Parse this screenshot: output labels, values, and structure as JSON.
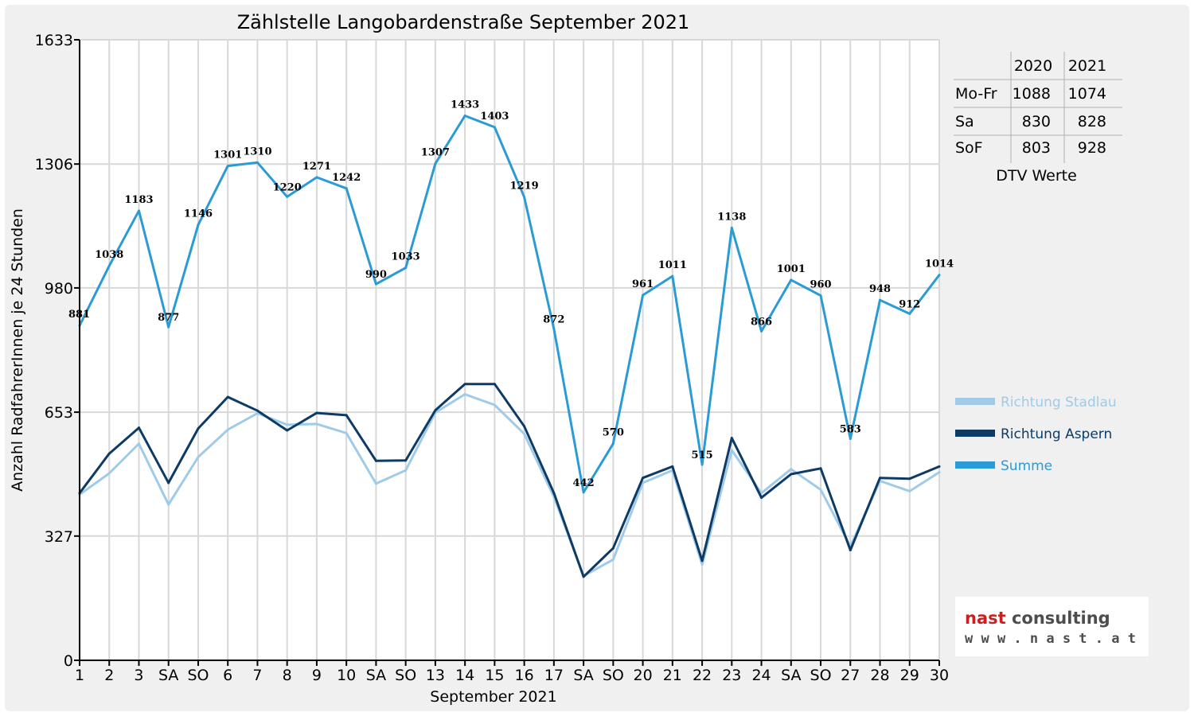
{
  "chart_data": {
    "type": "line",
    "title": "Zählstelle Langobardenstraße September 2021",
    "xlabel": "September 2021",
    "ylabel": "Anzahl RadfahrerInnen je 24 Stunden",
    "ylim": [
      0,
      1633
    ],
    "yticks": [
      "0",
      "327",
      "653",
      "980",
      "1306",
      "1633"
    ],
    "categories": [
      "1",
      "2",
      "3",
      "SA",
      "SO",
      "6",
      "7",
      "8",
      "9",
      "10",
      "SA",
      "SO",
      "13",
      "14",
      "15",
      "16",
      "17",
      "SA",
      "SO",
      "20",
      "21",
      "22",
      "23",
      "24",
      "SA",
      "SO",
      "27",
      "28",
      "29",
      "30"
    ],
    "highlight_categories": [
      "SO"
    ],
    "highlight_color": "#e00000",
    "grid": true,
    "legend_position": "right",
    "series": [
      {
        "name": "Richtung Stadlau",
        "color": "#9fcbe8",
        "values": [
          436,
          492,
          570,
          410,
          535,
          607,
          650,
          620,
          622,
          598,
          465,
          500,
          652,
          700,
          672,
          596,
          430,
          222,
          265,
          467,
          500,
          252,
          553,
          440,
          503,
          449,
          300,
          472,
          445,
          495
        ]
      },
      {
        "name": "Richtung Aspern",
        "color": "#0d3b66",
        "values": [
          440,
          544,
          612,
          467,
          610,
          693,
          657,
          605,
          651,
          645,
          525,
          526,
          658,
          727,
          727,
          616,
          440,
          220,
          295,
          480,
          510,
          262,
          585,
          428,
          490,
          505,
          290,
          480,
          478,
          510
        ]
      },
      {
        "name": "Summe",
        "color": "#2b9bd6",
        "values": [
          881,
          1038,
          1183,
          877,
          1146,
          1301,
          1310,
          1220,
          1271,
          1242,
          990,
          1033,
          1307,
          1433,
          1403,
          1219,
          872,
          442,
          570,
          961,
          1011,
          515,
          1138,
          866,
          1001,
          960,
          583,
          948,
          912,
          1014
        ]
      }
    ],
    "data_labels": [
      "881",
      "1038",
      "1183",
      "877",
      "1146",
      "1301",
      "1310",
      "1220",
      "1271",
      "1242",
      "990",
      "1033",
      "1307",
      "1433",
      "1403",
      "1219",
      "872",
      "442",
      "570",
      "961",
      "1011",
      "515",
      "1138",
      "866",
      "1001",
      "960",
      "583",
      "948",
      "912",
      "1014"
    ]
  },
  "dtv_table": {
    "headers": [
      "",
      "2020",
      "2021"
    ],
    "rows": [
      {
        "label": "Mo-Fr",
        "v2020": "1088",
        "v2021": "1074"
      },
      {
        "label": "Sa",
        "v2020": "830",
        "v2021": "828"
      },
      {
        "label": "SoF",
        "v2020": "803",
        "v2021": "928"
      }
    ],
    "caption": "DTV Werte"
  },
  "logo": {
    "line1_part1": "nast",
    "line1_part2": " consulting",
    "line2": "w w w . n a s t . a t",
    "color_red": "#cc1f1f",
    "color_dark": "#4d4d4d"
  }
}
